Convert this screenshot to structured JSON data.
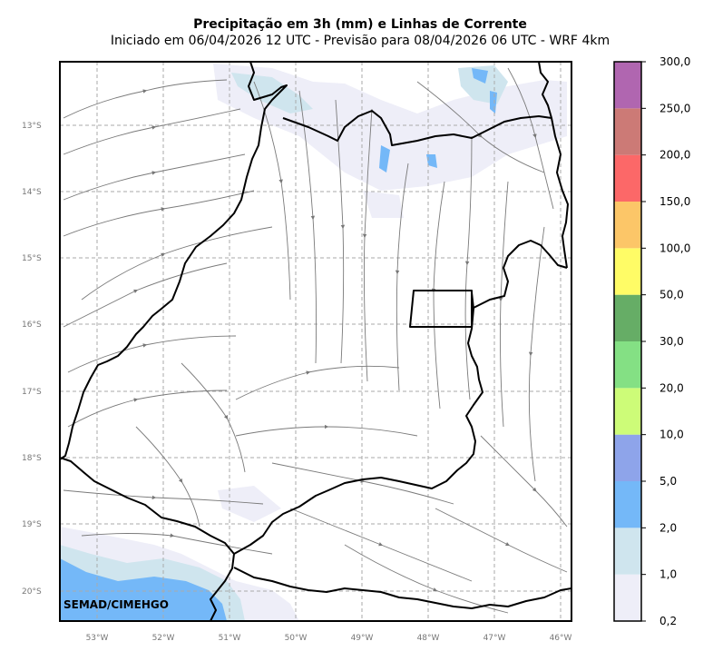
{
  "title": "Precipitação em 3h (mm) e Linhas de Corrente",
  "subtitle": "Iniciado em 06/04/2026 12 UTC - Previsão para 08/04/2026 06 UTC - WRF 4km",
  "credit": "SEMAD/CIMEHGO",
  "lat_labels": [
    "13°S",
    "14°S",
    "15°S",
    "16°S",
    "17°S",
    "18°S",
    "19°S",
    "20°S"
  ],
  "lon_labels": [
    "53°W",
    "52°W",
    "51°W",
    "50°W",
    "49°W",
    "48°W",
    "47°W",
    "46°W"
  ],
  "colorbar": {
    "labels": [
      "0,2",
      "1,0",
      "2,0",
      "5,0",
      "10,0",
      "20,0",
      "30,0",
      "50,0",
      "100,0",
      "150,0",
      "200,0",
      "250,0",
      "300,0"
    ],
    "colors": [
      "#eeeef8",
      "#cfe5ee",
      "#74b8f8",
      "#8ea4ea",
      "#cdfc78",
      "#84e084",
      "#66ad66",
      "#fffc66",
      "#fcc668",
      "#fc6868",
      "#cc7a76",
      "#b066b0"
    ]
  }
}
